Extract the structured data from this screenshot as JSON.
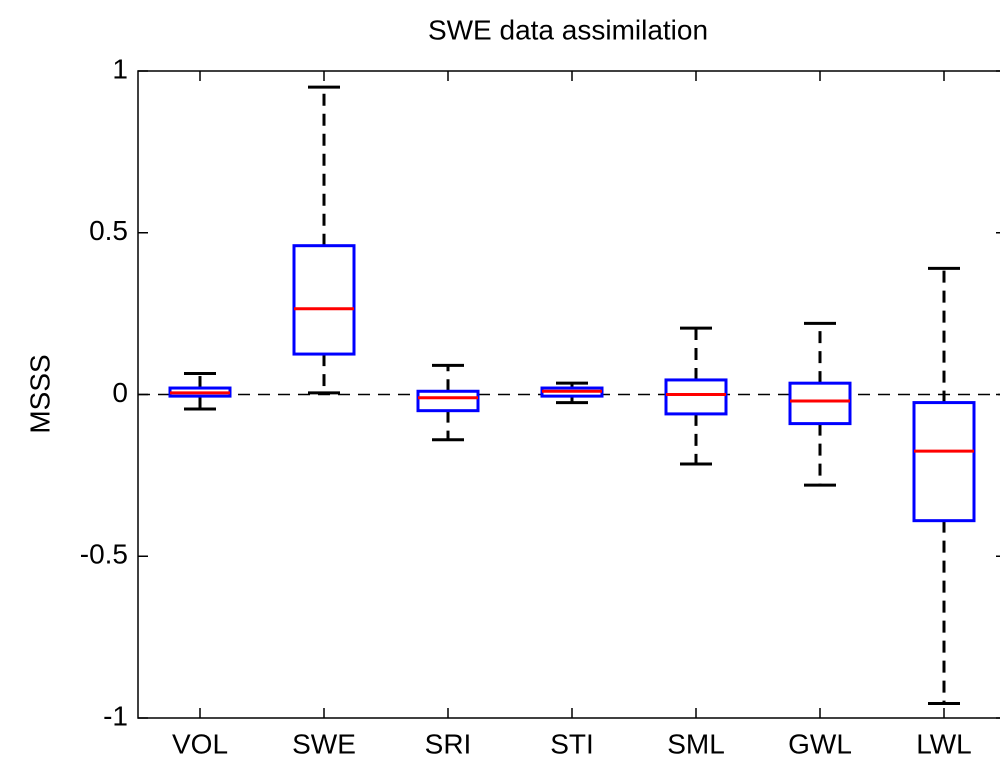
{
  "chart_data": {
    "type": "box",
    "title": "SWE data assimilation",
    "y_label": "MSSS",
    "categories": [
      "VOL",
      "SWE",
      "SRI",
      "STI",
      "SML",
      "GWL",
      "LWL"
    ],
    "boxes": [
      {
        "whislo": -0.045,
        "q1": -0.005,
        "med": 0.005,
        "q3": 0.02,
        "whishi": 0.065
      },
      {
        "whislo": 0.005,
        "q1": 0.125,
        "med": 0.265,
        "q3": 0.46,
        "whishi": 0.95
      },
      {
        "whislo": -0.14,
        "q1": -0.05,
        "med": -0.01,
        "q3": 0.01,
        "whishi": 0.09
      },
      {
        "whislo": -0.025,
        "q1": -0.005,
        "med": 0.01,
        "q3": 0.02,
        "whishi": 0.035
      },
      {
        "whislo": -0.215,
        "q1": -0.06,
        "med": 0.0,
        "q3": 0.045,
        "whishi": 0.205
      },
      {
        "whislo": -0.28,
        "q1": -0.09,
        "med": -0.02,
        "q3": 0.035,
        "whishi": 0.22
      },
      {
        "whislo": -0.955,
        "q1": -0.39,
        "med": -0.175,
        "q3": -0.025,
        "whishi": 0.39
      }
    ],
    "box_color": "#0000ff",
    "median_color": "#ff0000",
    "whisker_color": "#000000",
    "reference_line": 0,
    "ylim": [
      -1,
      1
    ],
    "yticks": [
      -1,
      -0.5,
      0,
      0.5,
      1
    ]
  }
}
